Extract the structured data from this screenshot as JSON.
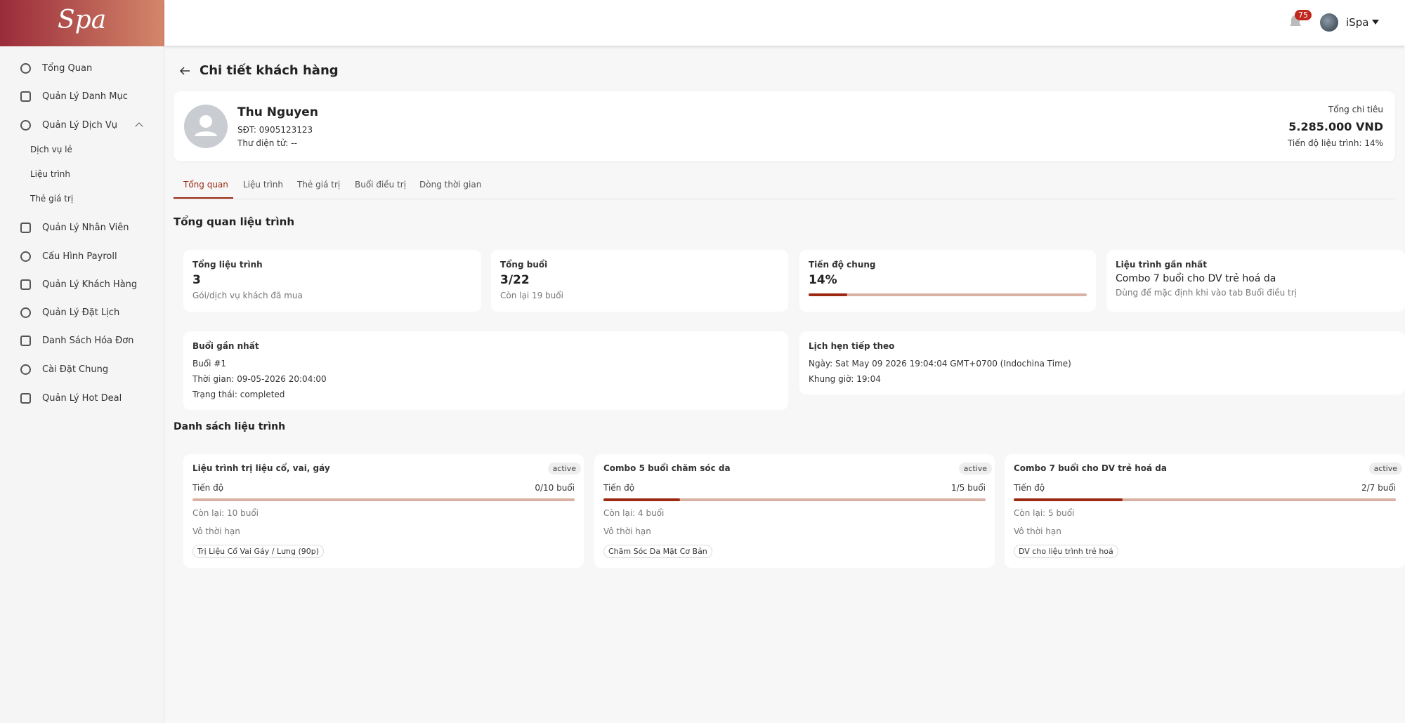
{
  "sidebar": {
    "logo": "Spa",
    "menu": [
      {
        "label": "Tổng Quan"
      },
      {
        "label": "Quản Lý Danh Mục"
      },
      {
        "label": "Quản Lý Dịch Vụ",
        "children": [
          "Dịch vụ lẻ",
          "Liệu trình",
          "Thẻ giá trị"
        ]
      },
      {
        "label": "Quản Lý Nhân Viên"
      },
      {
        "label": "Cấu Hình Payroll"
      },
      {
        "label": "Quản Lý Khách Hàng"
      },
      {
        "label": "Quản Lý Đặt Lịch"
      },
      {
        "label": "Danh Sách Hóa Đơn"
      },
      {
        "label": "Cài Đặt Chung"
      },
      {
        "label": "Quản Lý Hot Deal"
      }
    ]
  },
  "header": {
    "notifications": "75",
    "user": "iSpa"
  },
  "page": {
    "title": "Chi tiết khách hàng"
  },
  "customer": {
    "name": "Thu Nguyen",
    "phone": "SĐT: 0905123123",
    "email": "Thư điện tử: --",
    "spend_label": "Tổng chi tiêu",
    "spend": "5.285.000 VND",
    "progress": "Tiến độ liệu trình: 14%"
  },
  "tabs": [
    "Tổng quan",
    "Liệu trình",
    "Thẻ giá trị",
    "Buổi điều trị",
    "Dòng thời gian"
  ],
  "overview": {
    "title": "Tổng quan liệu trình",
    "cards": [
      {
        "label": "Tổng liệu trình",
        "value": 3,
        "note": "Gói/dịch vụ khách đã mua"
      },
      {
        "label": "Tổng buổi",
        "value": "3/22",
        "note": "Còn lại 19 buổi"
      },
      {
        "label": "Tiến độ chung",
        "value": 14,
        "value_label": "14%"
      },
      {
        "label": "Liệu trình gần nhất",
        "value": "Combo 7 buổi cho DV trẻ hoá da",
        "note": "Dùng để mặc định khi vào tab Buổi điều trị"
      }
    ]
  },
  "last_session": {
    "title": "Buổi gần nhất",
    "lines": [
      "Buổi #1",
      "Thời gian: 09-05-2026 20:04:00",
      "Trạng thái: completed"
    ]
  },
  "next_appointment": {
    "title": "Lịch hẹn tiếp theo",
    "lines": [
      "Ngày: Sat May 09 2026 19:04:04 GMT+0700 (Indochina Time)",
      "Khung giờ: 19:04"
    ]
  },
  "courses": {
    "title": "Danh sách liệu trình",
    "items": [
      {
        "name": "Liệu trình trị liệu cổ, vai, gáy",
        "status": "active",
        "progress_label": "Tiến độ",
        "progress_text": "0/10 buổi",
        "done": 0,
        "total": 10,
        "remaining": "Còn lại: 10 buổi",
        "duration": "Vô thời hạn",
        "service": "Trị Liệu Cổ Vai Gáy / Lưng (90p)"
      },
      {
        "name": "Combo 5 buổi chăm sóc da",
        "status": "active",
        "progress_label": "Tiến độ",
        "progress_text": "1/5 buổi",
        "done": 1,
        "total": 5,
        "remaining": "Còn lại: 4 buổi",
        "duration": "Vô thời hạn",
        "service": "Chăm Sóc Da Mặt Cơ Bản"
      },
      {
        "name": "Combo 7 buổi cho DV trẻ hoá da",
        "status": "active",
        "progress_label": "Tiến độ",
        "progress_text": "2/7 buổi",
        "done": 2,
        "total": 7,
        "remaining": "Còn lại: 5 buổi",
        "duration": "Vô thời hạn",
        "service": "DV cho liệu trình trẻ hoá"
      }
    ]
  }
}
